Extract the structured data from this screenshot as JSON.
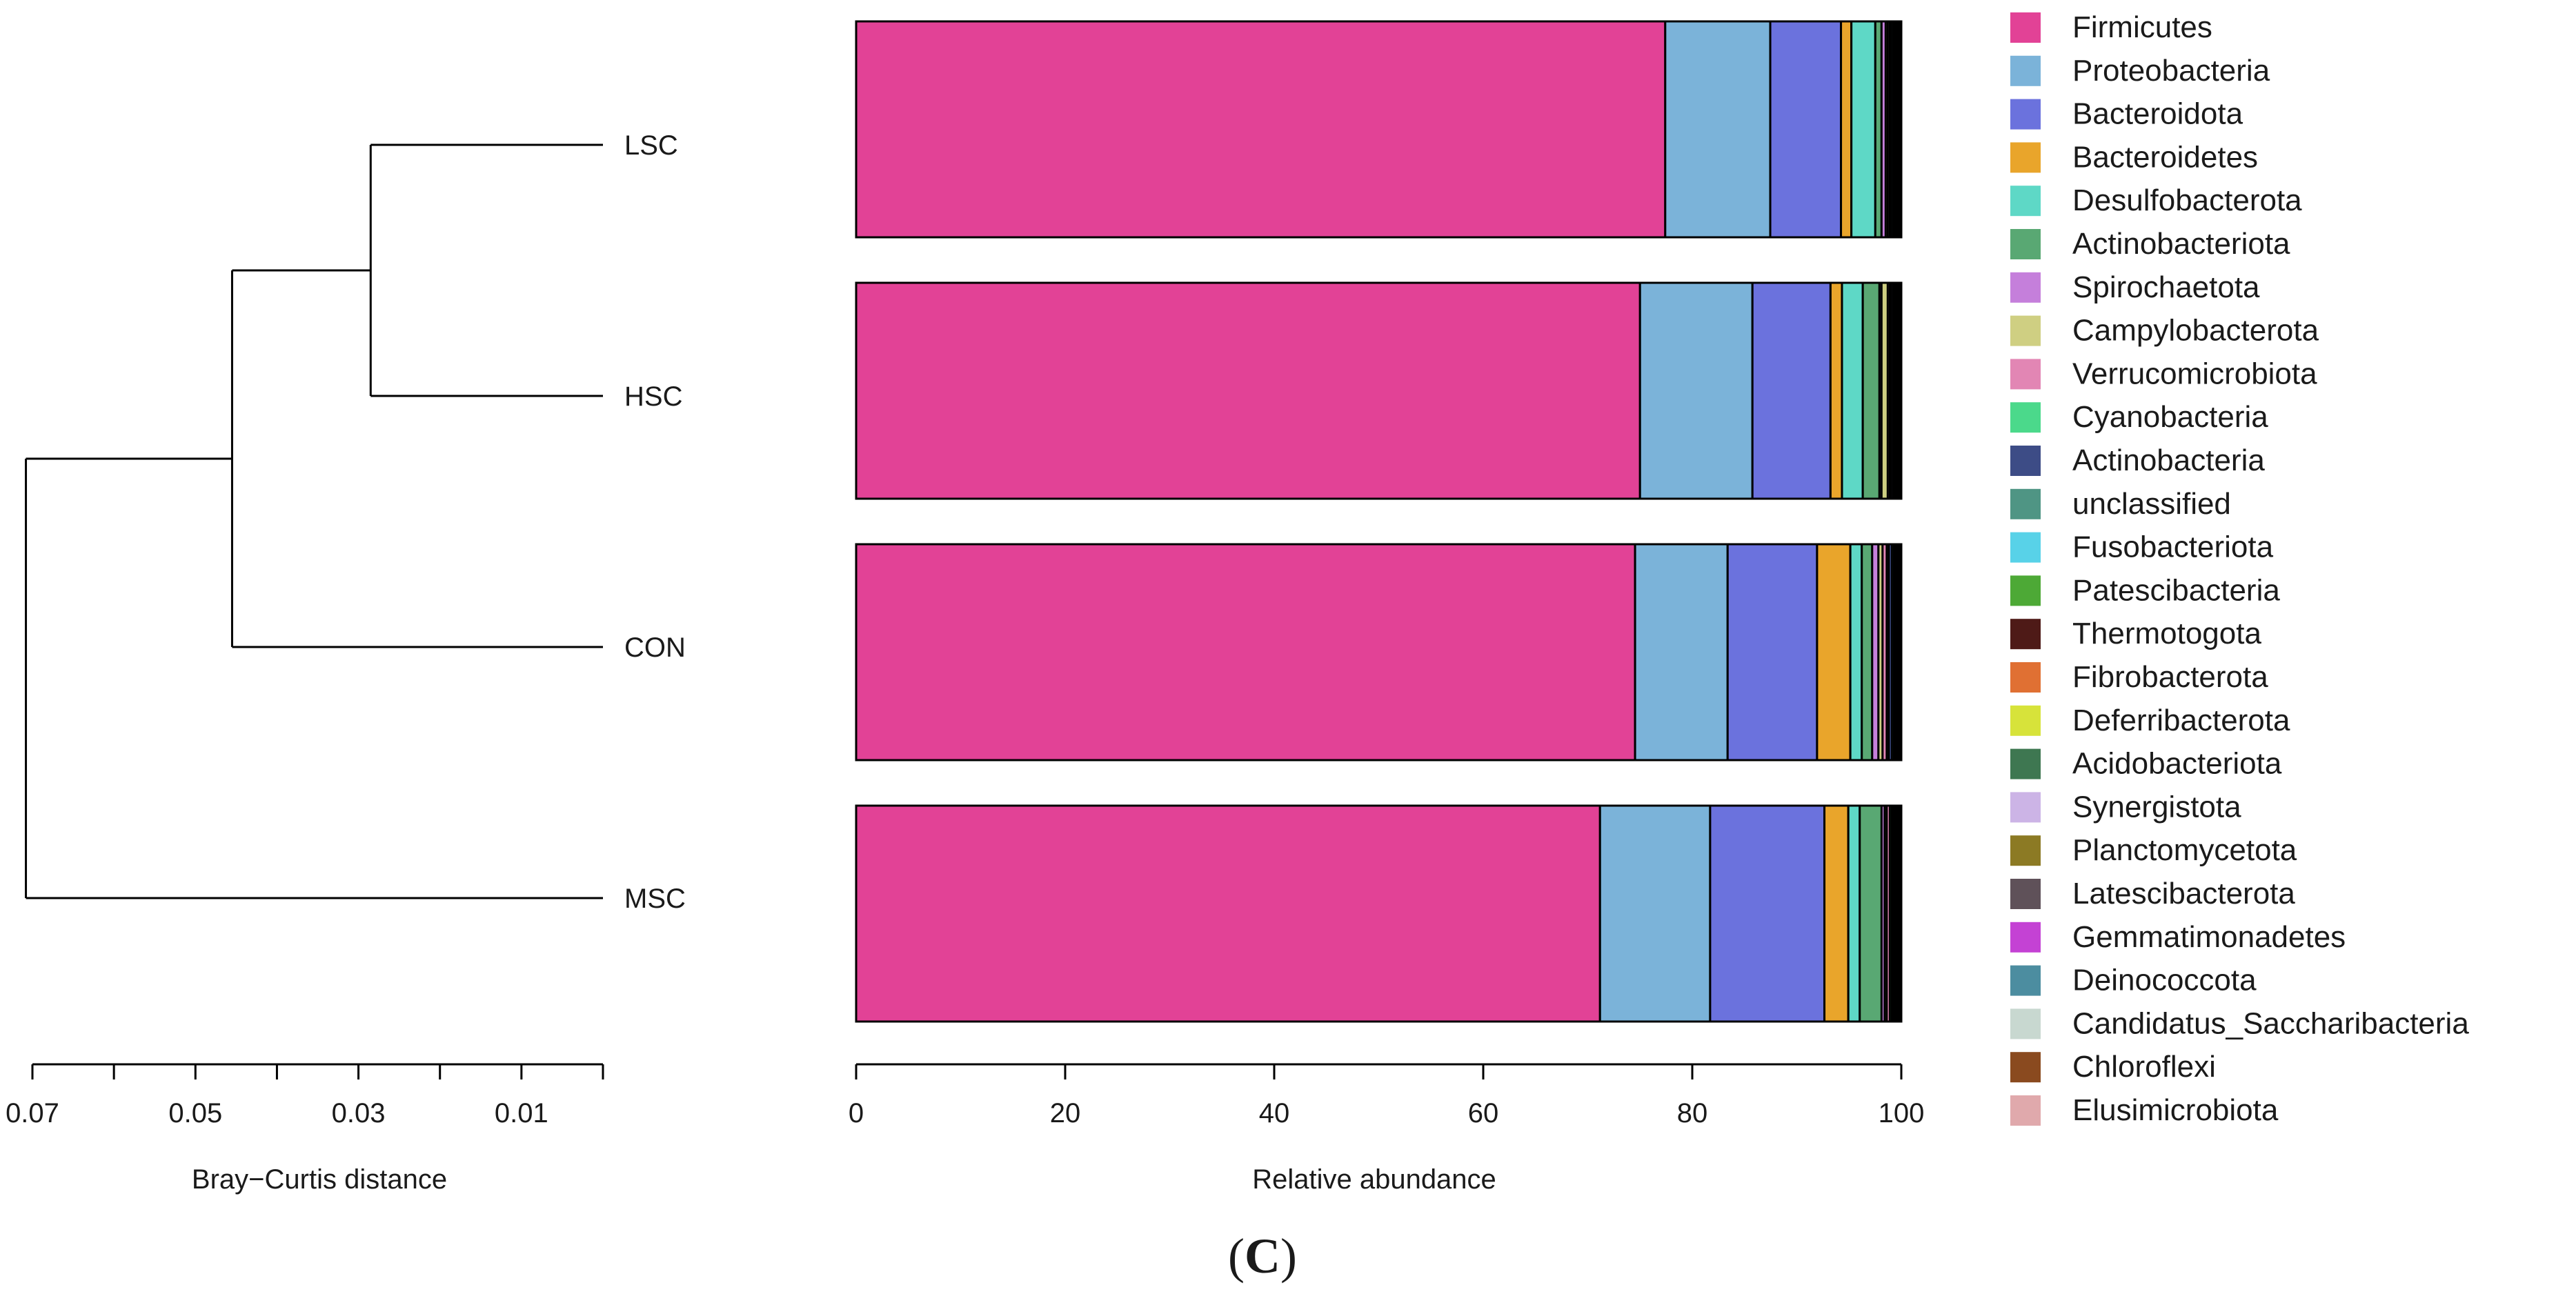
{
  "chart_data": {
    "type": "bar",
    "orientation": "horizontal",
    "stacked": true,
    "xlabel": "Relative abundance",
    "xlim": [
      0,
      100
    ],
    "xticks": [
      0,
      20,
      40,
      60,
      80,
      100
    ],
    "xtick_labels": [
      "0",
      "20",
      "40",
      "60",
      "80",
      "100"
    ],
    "categories": [
      "LSC",
      "HSC",
      "CON",
      "MSC"
    ],
    "series": [
      {
        "name": "Firmicutes",
        "color": "#E24296",
        "values": [
          77.8,
          75.3,
          74.9,
          71.6
        ]
      },
      {
        "name": "Proteobacteria",
        "color": "#7BB3D9",
        "values": [
          10.1,
          10.8,
          8.9,
          10.6
        ]
      },
      {
        "name": "Bacteroidota",
        "color": "#6B72DD",
        "values": [
          6.8,
          7.5,
          8.6,
          11.0
        ]
      },
      {
        "name": "Bacteroidetes",
        "color": "#E9A52B",
        "values": [
          1.0,
          1.1,
          3.2,
          2.3
        ]
      },
      {
        "name": "Desulfobacterota",
        "color": "#5ED8C6",
        "values": [
          2.3,
          2.0,
          1.1,
          1.1
        ]
      },
      {
        "name": "Actinobacteriota",
        "color": "#59A873",
        "values": [
          0.6,
          1.6,
          1.0,
          2.1
        ]
      },
      {
        "name": "Spirochaetota",
        "color": "#C57FDB",
        "values": [
          0.4,
          0.2,
          0.6,
          0.3
        ]
      },
      {
        "name": "Campylobacterota",
        "color": "#CFCF82",
        "values": [
          0.2,
          0.6,
          0.4,
          0.2
        ]
      },
      {
        "name": "Verrucomicrobiota",
        "color": "#E286B4",
        "values": [
          0.2,
          0.2,
          0.4,
          0.3
        ]
      },
      {
        "name": "Cyanobacteria",
        "color": "#4BD98B",
        "values": [
          0.1,
          0.1,
          0.2,
          0.2
        ]
      },
      {
        "name": "Actinobacteria",
        "color": "#3D4C86",
        "values": [
          0.2,
          0.2,
          0.3,
          0.1
        ]
      },
      {
        "name": "unclassified",
        "color": "#4F9584",
        "values": [
          0.1,
          0.1,
          0.2,
          0.1
        ]
      },
      {
        "name": "Fusobacteriota",
        "color": "#58D2E8",
        "values": [
          0.05,
          0.05,
          0.05,
          0.05
        ]
      },
      {
        "name": "Patescibacteria",
        "color": "#4DA936",
        "values": [
          0.05,
          0.05,
          0.05,
          0.05
        ]
      },
      {
        "name": "Thermotogota",
        "color": "#4E1A17",
        "values": [
          0.05,
          0.05,
          0.05,
          0.05
        ]
      },
      {
        "name": "Fibrobacterota",
        "color": "#E07033",
        "values": [
          0.05,
          0.05,
          0.05,
          0.05
        ]
      },
      {
        "name": "Deferribacterota",
        "color": "#D7E33A",
        "values": [
          0.05,
          0.05,
          0.05,
          0.05
        ]
      },
      {
        "name": "Acidobacteriota",
        "color": "#3E7751",
        "values": [
          0.05,
          0.05,
          0.05,
          0.05
        ]
      },
      {
        "name": "Synergistota",
        "color": "#CCB4E6",
        "values": [
          0.05,
          0.05,
          0.05,
          0.05
        ]
      },
      {
        "name": "Planctomycetota",
        "color": "#8C7A24",
        "values": [
          0.05,
          0.05,
          0.05,
          0.05
        ]
      },
      {
        "name": "Latescibacterota",
        "color": "#5F5159",
        "values": [
          0.05,
          0.05,
          0.05,
          0.05
        ]
      },
      {
        "name": "Gemmatimonadetes",
        "color": "#C442D4",
        "values": [
          0.05,
          0.05,
          0.05,
          0.05
        ]
      },
      {
        "name": "Deinococcota",
        "color": "#4C8DA0",
        "values": [
          0.05,
          0.05,
          0.05,
          0.05
        ]
      },
      {
        "name": "Candidatus_Saccharibacteria",
        "color": "#C8D8D0",
        "values": [
          0.05,
          0.05,
          0.05,
          0.05
        ]
      },
      {
        "name": "Chloroflexi",
        "color": "#8A4A1F",
        "values": [
          0.05,
          0.05,
          0.05,
          0.05
        ]
      },
      {
        "name": "Elusimicrobiota",
        "color": "#E0A9AC",
        "values": [
          0.05,
          0.05,
          0.05,
          0.05
        ]
      }
    ],
    "legend_position": "right",
    "dendrogram": {
      "xlabel": "Bray−Curtis distance",
      "xticks": [
        0.07,
        0.06,
        0.05,
        0.04,
        0.03,
        0.02,
        0.01,
        0.0
      ],
      "xtick_labels": [
        "0.07",
        "0.05",
        "0.03",
        "0.01"
      ],
      "xtick_label_values": [
        0.07,
        0.05,
        0.03,
        0.01
      ],
      "leaves": [
        "LSC",
        "HSC",
        "CON",
        "MSC"
      ],
      "merges": [
        {
          "left": "LSC",
          "right": "HSC",
          "height": 0.0285
        },
        {
          "left": "LSC+HSC",
          "right": "CON",
          "height": 0.0455
        },
        {
          "left": "LSC+HSC+CON",
          "right": "MSC",
          "height": 0.0708
        }
      ]
    }
  },
  "caption": {
    "open": "(",
    "letter": "C",
    "close": ")"
  }
}
